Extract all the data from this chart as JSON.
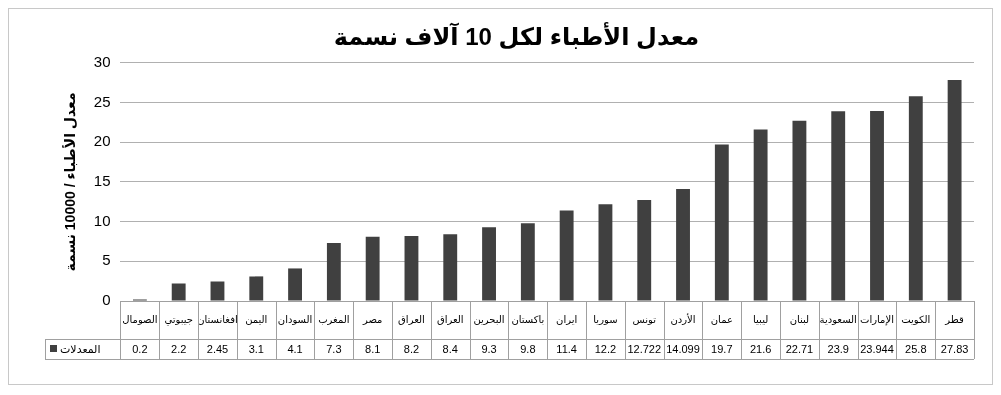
{
  "chart_data": {
    "type": "bar",
    "title": "معدل الأطباء لكل 10 آلاف نسمة",
    "ylabel": "معدل الأطباء / 10000 نسمة",
    "categories": [
      "الصومال",
      "جيبوتي",
      "افغانستان",
      "اليمن",
      "السودان",
      "المغرب",
      "مصر",
      "العراق",
      "العراق",
      "البحرين",
      "باكستان",
      "ايران",
      "سوريا",
      "تونس",
      "الأردن",
      "عمان",
      "ليبيا",
      "لبنان",
      "السعودية",
      "الإمارات",
      "الكويت",
      "قطر"
    ],
    "series": [
      {
        "name": "المعدلات",
        "color": "#404040",
        "values": [
          0.2,
          2.2,
          2.45,
          3.1,
          4.1,
          7.3,
          8.1,
          8.2,
          8.4,
          9.3,
          9.8,
          11.4,
          12.2,
          12.722,
          14.099,
          19.7,
          21.6,
          22.71,
          23.9,
          23.944,
          25.8,
          27.83
        ]
      }
    ],
    "ylim": [
      0,
      30
    ],
    "yticks": [
      0,
      5,
      10,
      15,
      20,
      25,
      30
    ],
    "grid": "y",
    "legend": "bottom left",
    "data_labels": true
  }
}
